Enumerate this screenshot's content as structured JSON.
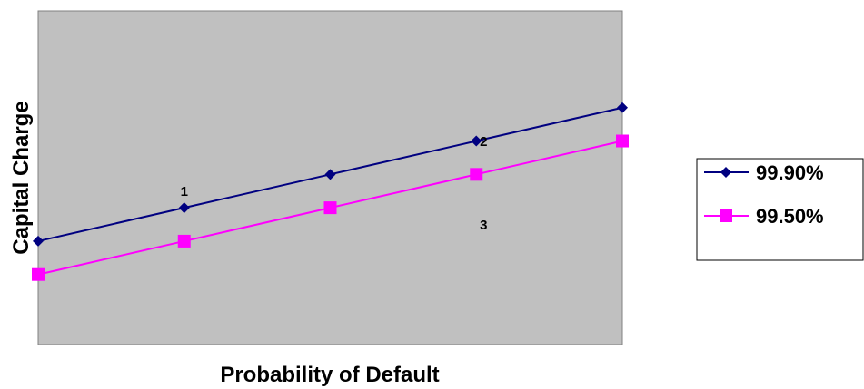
{
  "chart_data": {
    "type": "line",
    "title": "",
    "xlabel": "Probability of Default",
    "ylabel": "Capital Charge",
    "x": [
      1,
      2,
      3,
      4,
      5
    ],
    "ylim": [
      0,
      10
    ],
    "series": [
      {
        "name": "99.90%",
        "values": [
          3.1,
          4.1,
          5.1,
          6.1,
          7.1
        ],
        "color": "#000080",
        "marker": "diamond"
      },
      {
        "name": "99.50%",
        "values": [
          2.1,
          3.1,
          4.1,
          5.1,
          6.1
        ],
        "color": "#FF00FF",
        "marker": "square"
      }
    ],
    "annotations": [
      {
        "text": "1",
        "x": 2,
        "y": 4.45
      },
      {
        "text": "2",
        "x": 4.05,
        "y": 5.95
      },
      {
        "text": "3",
        "x": 4.05,
        "y": 3.45
      }
    ],
    "grid": false,
    "legend": "right",
    "plot_background": "#C0C0C0"
  }
}
